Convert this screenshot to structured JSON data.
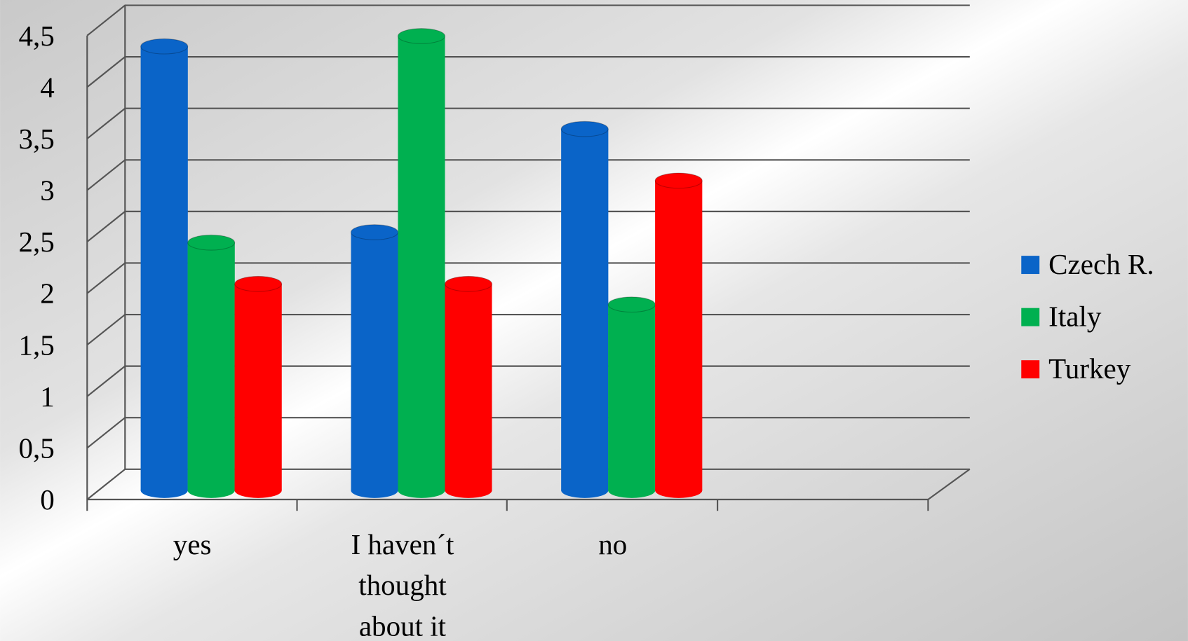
{
  "chart_data": {
    "type": "bar3d",
    "categories": [
      "yes",
      "I haven´t thought about it",
      "no",
      null
    ],
    "series": [
      {
        "name": "Czech R.",
        "color": "#0a64c8",
        "values": [
          4.3,
          2.5,
          3.5,
          null
        ]
      },
      {
        "name": "Italy",
        "color": "#00b050",
        "values": [
          2.4,
          4.4,
          1.8,
          null
        ]
      },
      {
        "name": "Turkey",
        "color": "#ff0000",
        "values": [
          2.0,
          2.0,
          3.0,
          null
        ]
      }
    ],
    "ylim": [
      0,
      4.5
    ],
    "yticks": [
      0,
      {
        "value": 0.5,
        "label": "0,5"
      },
      1,
      {
        "value": 1.5,
        "label": "1,5"
      },
      2,
      {
        "value": 2.5,
        "label": "2,5"
      },
      3,
      {
        "value": 3.5,
        "label": "3,5"
      },
      4,
      {
        "value": 4.5,
        "label": "4,5"
      }
    ],
    "grid": true,
    "legend": "right"
  }
}
